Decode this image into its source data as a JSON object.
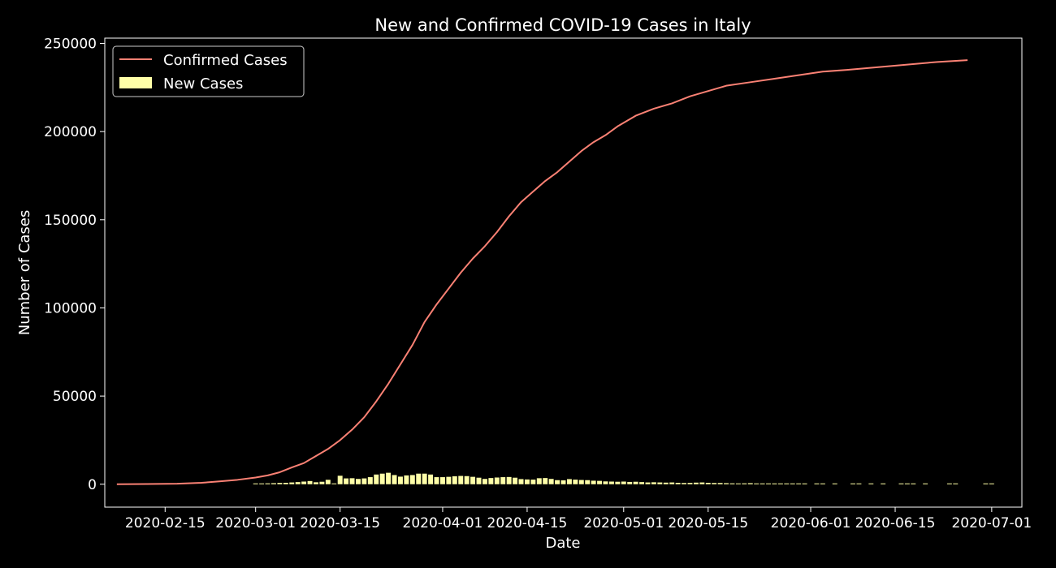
{
  "chart_data": {
    "type": "line",
    "title": "New and Confirmed COVID-19 Cases in Italy",
    "xlabel": "Date",
    "ylabel": "Number of Cases",
    "xlim": [
      "2020-02-05",
      "2020-07-06"
    ],
    "ylim": [
      -13000,
      253000
    ],
    "y_ticks": [
      0,
      50000,
      100000,
      150000,
      200000,
      250000
    ],
    "x_ticks": [
      "2020-02-15",
      "2020-03-01",
      "2020-03-15",
      "2020-04-01",
      "2020-04-15",
      "2020-05-01",
      "2020-05-15",
      "2020-06-01",
      "2020-06-15",
      "2020-07-01"
    ],
    "x_tick_labels": [
      "2020-02-15",
      "2020-03-01",
      "2020-03-15",
      "2020-04-01",
      "2020-04-15",
      "2020-05-01",
      "2020-05-15",
      "2020-06-01",
      "2020-06-15",
      "2020-07-01"
    ],
    "grid": false,
    "legend_position": "top-left",
    "series": [
      {
        "name": "Confirmed Cases",
        "kind": "line",
        "color": "#fa8174",
        "x": [
          "2020-02-07",
          "2020-02-12",
          "2020-02-17",
          "2020-02-21",
          "2020-02-24",
          "2020-02-27",
          "2020-03-01",
          "2020-03-03",
          "2020-03-05",
          "2020-03-07",
          "2020-03-09",
          "2020-03-11",
          "2020-03-13",
          "2020-03-15",
          "2020-03-17",
          "2020-03-19",
          "2020-03-21",
          "2020-03-23",
          "2020-03-25",
          "2020-03-27",
          "2020-03-29",
          "2020-03-31",
          "2020-04-02",
          "2020-04-04",
          "2020-04-06",
          "2020-04-08",
          "2020-04-10",
          "2020-04-12",
          "2020-04-14",
          "2020-04-16",
          "2020-04-18",
          "2020-04-20",
          "2020-04-22",
          "2020-04-24",
          "2020-04-26",
          "2020-04-28",
          "2020-04-30",
          "2020-05-03",
          "2020-05-06",
          "2020-05-09",
          "2020-05-12",
          "2020-05-15",
          "2020-05-18",
          "2020-05-22",
          "2020-05-26",
          "2020-05-30",
          "2020-06-03",
          "2020-06-07",
          "2020-06-12",
          "2020-06-17",
          "2020-06-22",
          "2020-06-27"
        ],
        "values": [
          0,
          100,
          300,
          800,
          1600,
          2500,
          3800,
          5000,
          6800,
          9500,
          12000,
          16000,
          20000,
          25000,
          31000,
          38000,
          47000,
          57000,
          68000,
          79000,
          92000,
          102000,
          111000,
          120000,
          128000,
          135000,
          143000,
          152000,
          160000,
          166000,
          172000,
          177000,
          183000,
          189000,
          194000,
          198000,
          203000,
          209000,
          213000,
          216000,
          220000,
          223000,
          226000,
          228000,
          230000,
          232000,
          234000,
          235000,
          236500,
          238000,
          239500,
          240500
        ]
      },
      {
        "name": "New Cases",
        "kind": "bar",
        "color": "#ffffa8",
        "x": [
          "2020-03-01",
          "2020-03-02",
          "2020-03-03",
          "2020-03-04",
          "2020-03-05",
          "2020-03-06",
          "2020-03-07",
          "2020-03-08",
          "2020-03-09",
          "2020-03-10",
          "2020-03-11",
          "2020-03-12",
          "2020-03-13",
          "2020-03-14",
          "2020-03-15",
          "2020-03-16",
          "2020-03-17",
          "2020-03-18",
          "2020-03-19",
          "2020-03-20",
          "2020-03-21",
          "2020-03-22",
          "2020-03-23",
          "2020-03-24",
          "2020-03-25",
          "2020-03-26",
          "2020-03-27",
          "2020-03-28",
          "2020-03-29",
          "2020-03-30",
          "2020-03-31",
          "2020-04-01",
          "2020-04-02",
          "2020-04-03",
          "2020-04-04",
          "2020-04-05",
          "2020-04-06",
          "2020-04-07",
          "2020-04-08",
          "2020-04-09",
          "2020-04-10",
          "2020-04-11",
          "2020-04-12",
          "2020-04-13",
          "2020-04-14",
          "2020-04-15",
          "2020-04-16",
          "2020-04-17",
          "2020-04-18",
          "2020-04-19",
          "2020-04-20",
          "2020-04-21",
          "2020-04-22",
          "2020-04-23",
          "2020-04-24",
          "2020-04-25",
          "2020-04-26",
          "2020-04-27",
          "2020-04-28",
          "2020-04-29",
          "2020-04-30",
          "2020-05-01",
          "2020-05-02",
          "2020-05-03",
          "2020-05-04",
          "2020-05-05",
          "2020-05-06",
          "2020-05-07",
          "2020-05-08",
          "2020-05-09",
          "2020-05-10",
          "2020-05-11",
          "2020-05-12",
          "2020-05-13",
          "2020-05-14",
          "2020-05-15",
          "2020-05-16",
          "2020-05-17",
          "2020-05-18",
          "2020-05-19",
          "2020-05-20",
          "2020-05-21",
          "2020-05-22",
          "2020-05-23",
          "2020-05-24",
          "2020-05-25",
          "2020-05-26",
          "2020-05-27",
          "2020-05-28",
          "2020-05-29",
          "2020-05-30",
          "2020-05-31",
          "2020-06-02",
          "2020-06-03",
          "2020-06-05",
          "2020-06-08",
          "2020-06-09",
          "2020-06-11",
          "2020-06-13",
          "2020-06-16",
          "2020-06-17",
          "2020-06-18",
          "2020-06-20",
          "2020-06-24",
          "2020-06-25",
          "2020-06-30",
          "2020-07-01"
        ],
        "values": [
          300,
          400,
          500,
          600,
          750,
          800,
          1000,
          1200,
          1500,
          1800,
          1100,
          1400,
          2500,
          0,
          4800,
          3300,
          3400,
          3000,
          3300,
          4000,
          5500,
          6000,
          6500,
          5200,
          4300,
          5000,
          5200,
          6000,
          6000,
          5500,
          4000,
          4000,
          4200,
          4500,
          4700,
          4600,
          4200,
          3700,
          3000,
          3500,
          3800,
          4000,
          4100,
          3700,
          2900,
          2700,
          2600,
          3400,
          3500,
          3000,
          2300,
          2200,
          2900,
          2600,
          2400,
          2300,
          2000,
          1900,
          1600,
          1500,
          1400,
          1500,
          1300,
          1400,
          1200,
          1000,
          1100,
          1000,
          900,
          1000,
          800,
          700,
          750,
          900,
          1000,
          800,
          700,
          700,
          600,
          500,
          400,
          500,
          600,
          400,
          300,
          400,
          300,
          350,
          300,
          300,
          250,
          250,
          200,
          200,
          200,
          150,
          100,
          150,
          100,
          100,
          100,
          100,
          100,
          100,
          100,
          100,
          100
        ]
      }
    ]
  }
}
